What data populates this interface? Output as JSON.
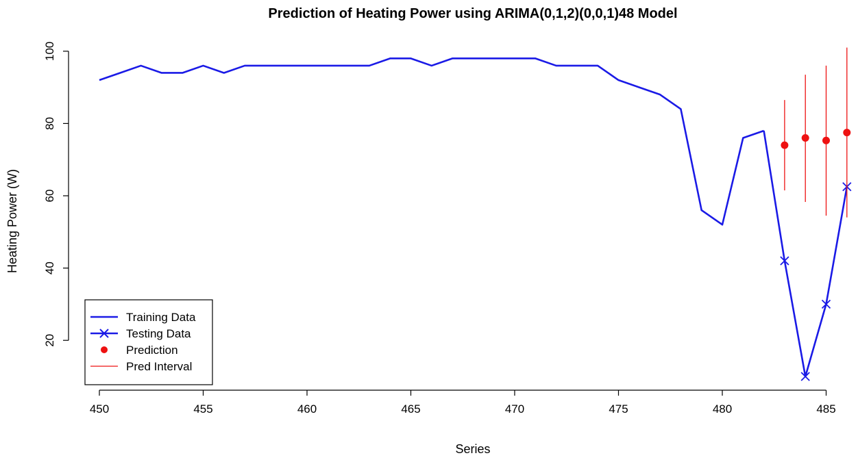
{
  "chart_data": {
    "type": "line",
    "title": "Prediction of Heating Power using ARIMA(0,1,2)(0,0,1)48 Model",
    "xlabel": "Series",
    "ylabel": "Heating Power (W)",
    "xlim": [
      450,
      486
    ],
    "ylim": [
      10,
      100
    ],
    "x_ticks": [
      450,
      455,
      460,
      465,
      470,
      475,
      480,
      485
    ],
    "y_ticks": [
      20,
      40,
      60,
      80,
      100
    ],
    "grid": false,
    "legend_position": "bottom-left",
    "colors": {
      "training": "#1a1ae6",
      "testing": "#1a1ae6",
      "prediction": "#ee1111",
      "interval": "#ee1111"
    },
    "legend": [
      "Training Data",
      "Testing Data",
      "Prediction",
      "Pred Interval"
    ],
    "series": [
      {
        "name": "Training Data",
        "x": [
          450,
          451,
          452,
          453,
          454,
          455,
          456,
          457,
          458,
          459,
          460,
          461,
          462,
          463,
          464,
          465,
          466,
          467,
          468,
          469,
          470,
          471,
          472,
          473,
          474,
          475,
          476,
          477,
          478,
          479,
          480,
          481,
          482
        ],
        "values": [
          92,
          94,
          96,
          94,
          94,
          96,
          94,
          96,
          96,
          96,
          96,
          96,
          96,
          96,
          98,
          98,
          96,
          98,
          98,
          98,
          98,
          98,
          96,
          96,
          96,
          92,
          90,
          88,
          84,
          56,
          52,
          76,
          78
        ]
      },
      {
        "name": "Testing Data",
        "x": [
          482,
          483,
          484,
          485,
          486
        ],
        "values": [
          78,
          42,
          10,
          30,
          62.5
        ]
      },
      {
        "name": "Prediction",
        "x": [
          483,
          484,
          485,
          486
        ],
        "values": [
          74,
          76,
          75.3,
          77.5
        ]
      },
      {
        "name": "Pred Interval",
        "x": [
          483,
          484,
          485,
          486
        ],
        "lower": [
          61.5,
          58.3,
          54.5,
          54
        ],
        "upper": [
          86.5,
          93.5,
          96,
          101
        ]
      }
    ]
  }
}
